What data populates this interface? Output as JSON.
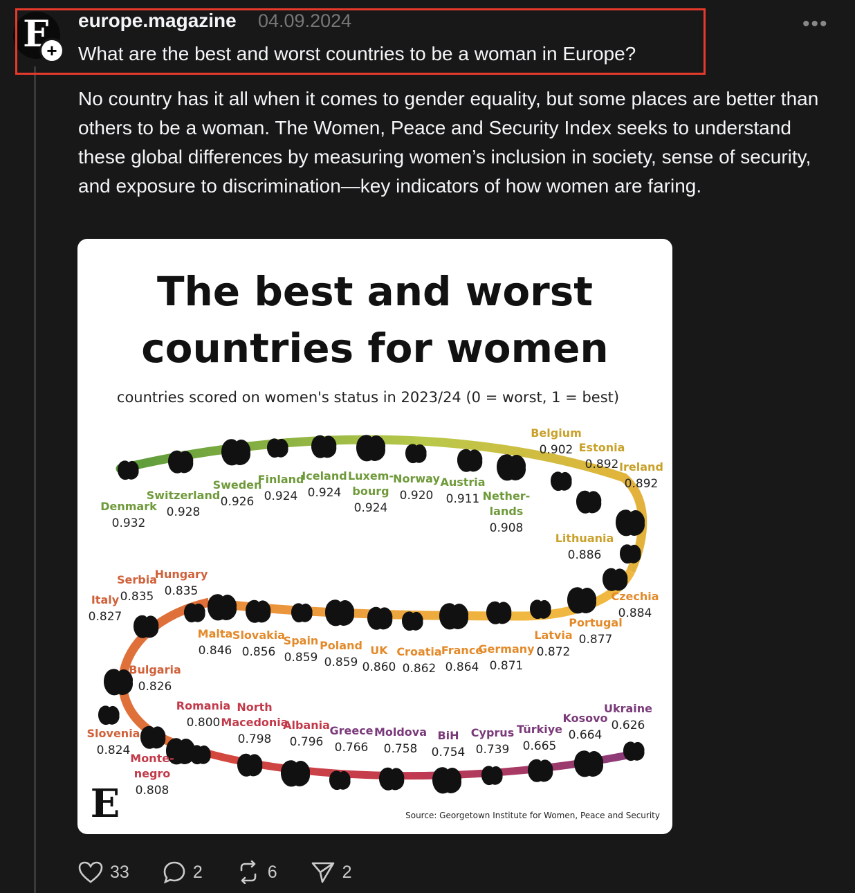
{
  "post": {
    "username": "europe.magazine",
    "date": "04.09.2024",
    "avatar_letter": "E",
    "headline": "What are the best and worst countries to be a woman in Europe?",
    "body": "No country has it all when it comes to gender equality, but some places are better than others to be a woman. The Women, Peace and Security Index seeks to understand these global differences by measuring women’s inclusion in society, sense of security, and exposure to discrimination—key indicators of how women are faring.",
    "more_icon": "more-horizontal-icon"
  },
  "infographic": {
    "title_line1": "The best and worst",
    "title_line2": "countries for women",
    "subtitle": "countries scored on women's status in 2023/24 (0 = worst, 1 = best)",
    "source": "Source: Georgetown Institute for Women, Peace and Security",
    "logo_letter": "E"
  },
  "chart_data": {
    "type": "table",
    "title": "The best and worst countries for women",
    "subtitle": "countries scored on women's status in 2023/24 (0 = worst, 1 = best)",
    "ylim": [
      0,
      1
    ],
    "entries": [
      {
        "country": "Denmark",
        "label": [
          "Denmark"
        ],
        "score": 0.932
      },
      {
        "country": "Switzerland",
        "label": [
          "Switzerland"
        ],
        "score": 0.928
      },
      {
        "country": "Sweden",
        "label": [
          "Sweden"
        ],
        "score": 0.926
      },
      {
        "country": "Finland",
        "label": [
          "Finland"
        ],
        "score": 0.924
      },
      {
        "country": "Iceland",
        "label": [
          "Iceland"
        ],
        "score": 0.924
      },
      {
        "country": "Luxembourg",
        "label": [
          "Luxem-",
          "bourg"
        ],
        "score": 0.924
      },
      {
        "country": "Norway",
        "label": [
          "Norway"
        ],
        "score": 0.92
      },
      {
        "country": "Austria",
        "label": [
          "Austria"
        ],
        "score": 0.911
      },
      {
        "country": "Netherlands",
        "label": [
          "Nether-",
          "lands"
        ],
        "score": 0.908
      },
      {
        "country": "Belgium",
        "label": [
          "Belgium"
        ],
        "score": 0.902
      },
      {
        "country": "Estonia",
        "label": [
          "Estonia"
        ],
        "score": 0.892
      },
      {
        "country": "Ireland",
        "label": [
          "Ireland"
        ],
        "score": 0.892
      },
      {
        "country": "Lithuania",
        "label": [
          "Lithuania"
        ],
        "score": 0.886
      },
      {
        "country": "Czechia",
        "label": [
          "Czechia"
        ],
        "score": 0.884
      },
      {
        "country": "Portugal",
        "label": [
          "Portugal"
        ],
        "score": 0.877
      },
      {
        "country": "Latvia",
        "label": [
          "Latvia"
        ],
        "score": 0.872
      },
      {
        "country": "Germany",
        "label": [
          "Germany"
        ],
        "score": 0.871
      },
      {
        "country": "France",
        "label": [
          "France"
        ],
        "score": 0.864
      },
      {
        "country": "Croatia",
        "label": [
          "Croatia"
        ],
        "score": 0.862
      },
      {
        "country": "UK",
        "label": [
          "UK"
        ],
        "score": 0.86
      },
      {
        "country": "Poland",
        "label": [
          "Poland"
        ],
        "score": 0.859
      },
      {
        "country": "Spain",
        "label": [
          "Spain"
        ],
        "score": 0.859
      },
      {
        "country": "Slovakia",
        "label": [
          "Slovakia"
        ],
        "score": 0.856
      },
      {
        "country": "Malta",
        "label": [
          "Malta"
        ],
        "score": 0.846
      },
      {
        "country": "Hungary",
        "label": [
          "Hungary"
        ],
        "score": 0.835
      },
      {
        "country": "Serbia",
        "label": [
          "Serbia"
        ],
        "score": 0.835
      },
      {
        "country": "Italy",
        "label": [
          "Italy"
        ],
        "score": 0.827
      },
      {
        "country": "Bulgaria",
        "label": [
          "Bulgaria"
        ],
        "score": 0.826
      },
      {
        "country": "Slovenia",
        "label": [
          "Slovenia"
        ],
        "score": 0.824
      },
      {
        "country": "Montenegro",
        "label": [
          "Monte-",
          "negro"
        ],
        "score": 0.808
      },
      {
        "country": "Romania",
        "label": [
          "Romania"
        ],
        "score": 0.8
      },
      {
        "country": "North Macedonia",
        "label": [
          "North",
          "Macedonia"
        ],
        "score": 0.798
      },
      {
        "country": "Albania",
        "label": [
          "Albania"
        ],
        "score": 0.796
      },
      {
        "country": "Greece",
        "label": [
          "Greece"
        ],
        "score": 0.766
      },
      {
        "country": "Moldova",
        "label": [
          "Moldova"
        ],
        "score": 0.758
      },
      {
        "country": "BiH",
        "label": [
          "BiH"
        ],
        "score": 0.754
      },
      {
        "country": "Cyprus",
        "label": [
          "Cyprus"
        ],
        "score": 0.739
      },
      {
        "country": "Türkiye",
        "label": [
          "Türkiye"
        ],
        "score": 0.665
      },
      {
        "country": "Kosovo",
        "label": [
          "Kosovo"
        ],
        "score": 0.664
      },
      {
        "country": "Ukraine",
        "label": [
          "Ukraine"
        ],
        "score": 0.626
      }
    ]
  },
  "actions": {
    "likes": "33",
    "replies": "2",
    "reposts": "6",
    "shares": "2"
  }
}
